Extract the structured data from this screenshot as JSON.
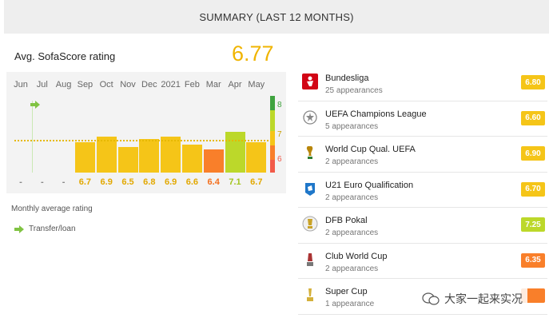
{
  "header": {
    "title": "SUMMARY (LAST 12 MONTHS)"
  },
  "avg": {
    "label": "Avg. SofaScore rating",
    "value": "6.77"
  },
  "chart_data": {
    "type": "bar",
    "categories": [
      "Jun",
      "Jul",
      "Aug",
      "Sep",
      "Oct",
      "Nov",
      "Dec",
      "2021",
      "Feb",
      "Mar",
      "Apr",
      "May"
    ],
    "values": [
      null,
      null,
      null,
      6.7,
      6.9,
      6.5,
      6.8,
      6.9,
      6.6,
      6.4,
      7.1,
      6.7
    ],
    "labels": [
      "-",
      "-",
      "-",
      "6.7",
      "6.9",
      "6.5",
      "6.8",
      "6.9",
      "6.6",
      "6.4",
      "7.1",
      "6.7"
    ],
    "average": 6.77,
    "ylim": [
      5.5,
      8.5
    ],
    "scale_labels": [
      "8",
      "7",
      "6"
    ],
    "transfer_month": "Jun",
    "colors": {
      "yellow": "#f5c518",
      "orange": "#f97f2a",
      "lime": "#bcd82a",
      "green": "#80c342",
      "red": "#f25a49",
      "yellow_text": "#e2a800",
      "orange_text": "#f36f1d",
      "lime_text": "#a3c51f",
      "dash": "#888888"
    }
  },
  "legend": {
    "monthly": "Monthly average rating",
    "transfer": "Transfer/loan"
  },
  "competitions": [
    {
      "name": "Bundesliga",
      "apps": "25 appearances",
      "rating": "6.80",
      "color": "#f5c518",
      "icon": "bundesliga-icon"
    },
    {
      "name": "UEFA Champions League",
      "apps": "5 appearances",
      "rating": "6.60",
      "color": "#f5c518",
      "icon": "champions-league-icon"
    },
    {
      "name": "World Cup Qual. UEFA",
      "apps": "2 appearances",
      "rating": "6.90",
      "color": "#f5c518",
      "icon": "world-cup-trophy-icon"
    },
    {
      "name": "U21 Euro Qualification",
      "apps": "2 appearances",
      "rating": "6.70",
      "color": "#f5c518",
      "icon": "u21-euro-icon"
    },
    {
      "name": "DFB Pokal",
      "apps": "2 appearances",
      "rating": "7.25",
      "color": "#bcd82a",
      "icon": "dfb-pokal-icon"
    },
    {
      "name": "Club World Cup",
      "apps": "2 appearances",
      "rating": "6.35",
      "color": "#f97f2a",
      "icon": "club-world-cup-icon"
    },
    {
      "name": "Super Cup",
      "apps": "1 appearance",
      "rating": "",
      "color": "#f97f2a",
      "icon": "super-cup-icon"
    }
  ],
  "watermark": {
    "text": "大家一起来实况"
  }
}
